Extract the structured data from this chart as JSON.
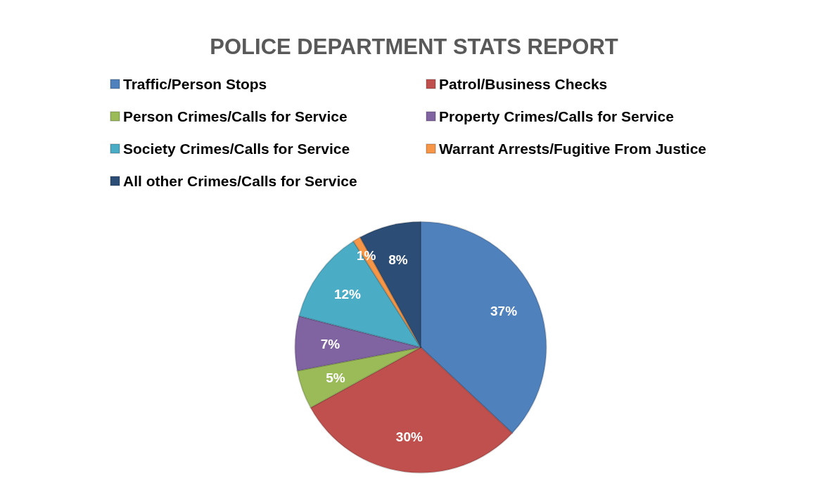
{
  "chart_data": {
    "type": "pie",
    "title": "POLICE DEPARTMENT STATS REPORT",
    "categories": [
      "Traffic/Person Stops",
      "Patrol/Business Checks",
      "Person Crimes/Calls for Service",
      "Property Crimes/Calls for Service",
      "Society Crimes/Calls for Service",
      "Warrant Arrests/Fugitive From Justice",
      "All other Crimes/Calls for Service"
    ],
    "values": [
      37,
      30,
      5,
      7,
      12,
      1,
      8
    ],
    "colors": [
      "#4f81bd",
      "#c0504d",
      "#9bbb59",
      "#8064a2",
      "#4bacc6",
      "#f79646",
      "#2c4d75"
    ],
    "value_labels": [
      "37%",
      "30%",
      "5%",
      "7%",
      "12%",
      "1%",
      "8%"
    ],
    "legend": "top"
  }
}
